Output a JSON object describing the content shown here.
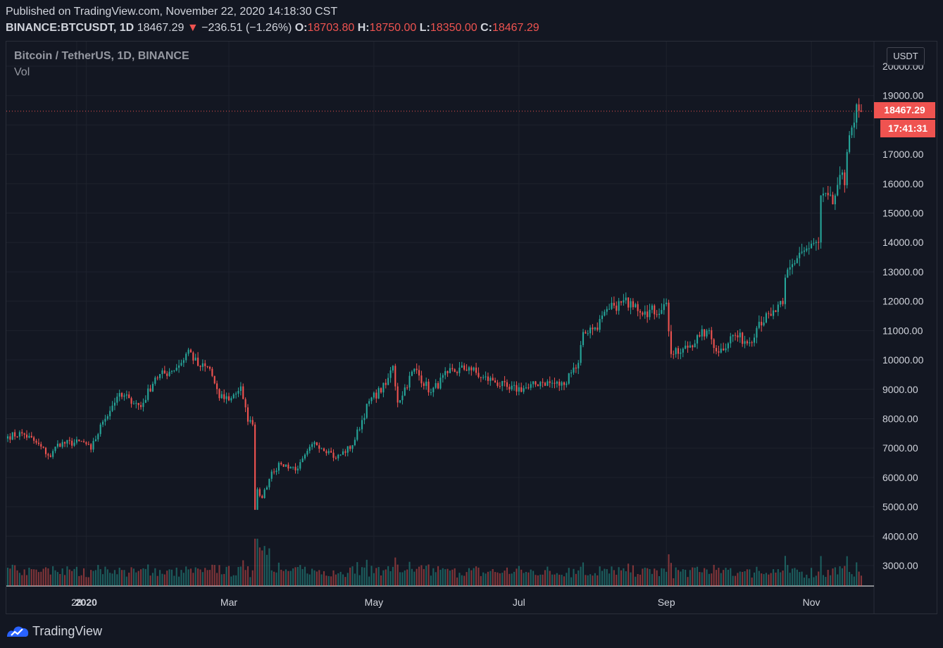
{
  "header": {
    "published": "Published on TradingView.com, November 22, 2020 14:18:30 CST",
    "symbol": "BINANCE:BTCUSDT, 1D",
    "last": "18467.29",
    "change_arrow": "▼",
    "change": "−236.51 (−1.26%)",
    "o_label": "O:",
    "o_value": "18703.80",
    "h_label": "H:",
    "h_value": "18750.00",
    "l_label": "L:",
    "l_value": "18350.00",
    "c_label": "C:",
    "c_value": "18467.29"
  },
  "legend": {
    "title": "Bitcoin / TetherUS, 1D, BINANCE",
    "volume": "Vol"
  },
  "price_axis": {
    "unit": "USDT",
    "last_price": "18467.29",
    "countdown": "17:41:31"
  },
  "footer": {
    "brand": "TradingView",
    "logo_icon": "tradingview-logo-icon"
  },
  "colors": {
    "up": "#26a69a",
    "down": "#ef5350",
    "background": "#131722",
    "grid": "#1e222d"
  },
  "chart_data": {
    "type": "candlestick",
    "title": "Bitcoin / TetherUS, 1D, BINANCE",
    "y_ticks": [
      3000,
      4000,
      5000,
      6000,
      7000,
      8000,
      9000,
      10000,
      11000,
      12000,
      13000,
      14000,
      15000,
      16000,
      17000,
      18000,
      19000,
      20000
    ],
    "y_tick_labels": [
      "3000.00",
      "4000.00",
      "5000.00",
      "6000.00",
      "7000.00",
      "8000.00",
      "9000.00",
      "10000.00",
      "11000.00",
      "12000.00",
      "13000.00",
      "14000.00",
      "15000.00",
      "16000.00",
      "17000.00",
      "18000.00",
      "19000.00",
      "20000.00"
    ],
    "ylim": [
      2300,
      20500
    ],
    "x_ticks": [
      {
        "label": "28",
        "date": "2019-12-28"
      },
      {
        "label": "2020",
        "date": "2020-01-01"
      },
      {
        "label": "Mar",
        "date": "2020-03-01"
      },
      {
        "label": "May",
        "date": "2020-05-01"
      },
      {
        "label": "Jul",
        "date": "2020-07-01"
      },
      {
        "label": "Sep",
        "date": "2020-09-01"
      },
      {
        "label": "Nov",
        "date": "2020-11-01"
      }
    ],
    "first_date": "2019-11-29",
    "last_date": "2020-11-22",
    "last_price_line": 18467.29,
    "close_anchors": [
      [
        "2019-11-29",
        7400
      ],
      [
        "2019-12-05",
        7500
      ],
      [
        "2019-12-10",
        7250
      ],
      [
        "2019-12-17",
        6700
      ],
      [
        "2019-12-20",
        7150
      ],
      [
        "2019-12-31",
        7200
      ],
      [
        "2020-01-03",
        6950
      ],
      [
        "2020-01-08",
        7900
      ],
      [
        "2020-01-14",
        8750
      ],
      [
        "2020-01-19",
        8700
      ],
      [
        "2020-01-24",
        8400
      ],
      [
        "2020-01-30",
        9400
      ],
      [
        "2020-02-05",
        9600
      ],
      [
        "2020-02-10",
        9900
      ],
      [
        "2020-02-13",
        10350
      ],
      [
        "2020-02-17",
        9800
      ],
      [
        "2020-02-22",
        9700
      ],
      [
        "2020-02-26",
        8700
      ],
      [
        "2020-03-02",
        8700
      ],
      [
        "2020-03-06",
        9100
      ],
      [
        "2020-03-09",
        7900
      ],
      [
        "2020-03-11",
        7800
      ],
      [
        "2020-03-12",
        4900
      ],
      [
        "2020-03-13",
        5600
      ],
      [
        "2020-03-15",
        5300
      ],
      [
        "2020-03-19",
        6200
      ],
      [
        "2020-03-23",
        6450
      ],
      [
        "2020-03-30",
        6300
      ],
      [
        "2020-04-06",
        7200
      ],
      [
        "2020-04-12",
        6900
      ],
      [
        "2020-04-15",
        6650
      ],
      [
        "2020-04-22",
        7100
      ],
      [
        "2020-04-29",
        8600
      ],
      [
        "2020-05-06",
        9150
      ],
      [
        "2020-05-09",
        9800
      ],
      [
        "2020-05-11",
        8550
      ],
      [
        "2020-05-18",
        9700
      ],
      [
        "2020-05-25",
        8900
      ],
      [
        "2020-06-01",
        9550
      ],
      [
        "2020-06-10",
        9750
      ],
      [
        "2020-06-15",
        9400
      ],
      [
        "2020-06-20",
        9300
      ],
      [
        "2020-06-27",
        9000
      ],
      [
        "2020-07-05",
        9050
      ],
      [
        "2020-07-10",
        9250
      ],
      [
        "2020-07-20",
        9150
      ],
      [
        "2020-07-22",
        9550
      ],
      [
        "2020-07-26",
        9900
      ],
      [
        "2020-07-28",
        10950
      ],
      [
        "2020-08-02",
        11100
      ],
      [
        "2020-08-10",
        11850
      ],
      [
        "2020-08-17",
        12000
      ],
      [
        "2020-08-19",
        11900
      ],
      [
        "2020-08-23",
        11650
      ],
      [
        "2020-08-30",
        11700
      ],
      [
        "2020-09-01",
        11950
      ],
      [
        "2020-09-03",
        10200
      ],
      [
        "2020-09-07",
        10250
      ],
      [
        "2020-09-15",
        10800
      ],
      [
        "2020-09-18",
        11000
      ],
      [
        "2020-09-23",
        10250
      ],
      [
        "2020-09-29",
        10850
      ],
      [
        "2020-10-06",
        10600
      ],
      [
        "2020-10-10",
        11300
      ],
      [
        "2020-10-15",
        11500
      ],
      [
        "2020-10-20",
        11900
      ],
      [
        "2020-10-21",
        12800
      ],
      [
        "2020-10-27",
        13650
      ],
      [
        "2020-10-31",
        13800
      ],
      [
        "2020-11-04",
        14000
      ],
      [
        "2020-11-05",
        15600
      ],
      [
        "2020-11-10",
        15300
      ],
      [
        "2020-11-13",
        16300
      ],
      [
        "2020-11-15",
        15950
      ],
      [
        "2020-11-17",
        17650
      ],
      [
        "2020-11-20",
        18700
      ],
      [
        "2020-11-22",
        18467
      ]
    ],
    "volume_note": "volume bars shown along the bottom"
  }
}
